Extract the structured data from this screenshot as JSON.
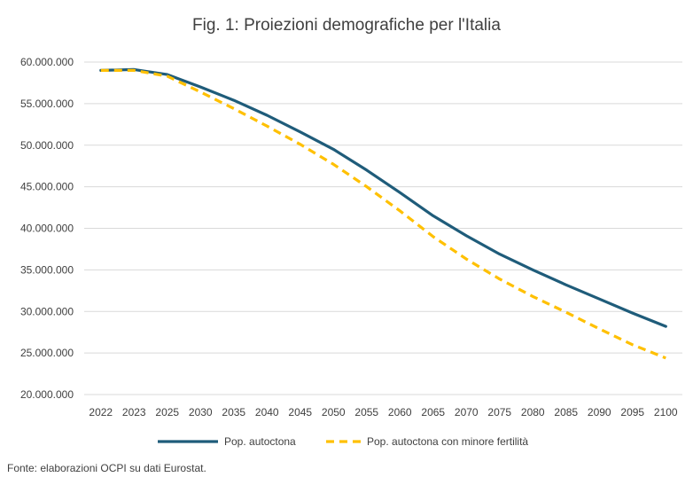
{
  "chart_data": {
    "type": "line",
    "title": "Fig. 1: Proiezioni demografiche per l'Italia",
    "xlabel": "",
    "ylabel": "",
    "ylim": [
      20000000,
      60000000
    ],
    "ytick_values": [
      20000000,
      25000000,
      30000000,
      35000000,
      40000000,
      45000000,
      50000000,
      55000000,
      60000000
    ],
    "ytick_labels": [
      "20.000.000",
      "25.000.000",
      "30.000.000",
      "35.000.000",
      "40.000.000",
      "45.000.000",
      "50.000.000",
      "55.000.000",
      "60.000.000"
    ],
    "categories": [
      "2022",
      "2023",
      "2025",
      "2030",
      "2035",
      "2040",
      "2045",
      "2050",
      "2055",
      "2060",
      "2065",
      "2070",
      "2075",
      "2080",
      "2085",
      "2090",
      "2095",
      "2100"
    ],
    "grid": true,
    "legend_position": "bottom",
    "series": [
      {
        "name": "Pop. autoctona",
        "color": "#1f5c7a",
        "dash": "solid",
        "values": [
          59000000,
          59100000,
          58500000,
          57000000,
          55400000,
          53600000,
          51600000,
          49500000,
          47000000,
          44300000,
          41500000,
          39100000,
          36900000,
          35000000,
          33200000,
          31500000,
          29800000,
          28200000
        ]
      },
      {
        "name": "Pop. autoctona con minore fertilità",
        "color": "#ffc000",
        "dash": "dashed",
        "values": [
          59000000,
          59000000,
          58300000,
          56400000,
          54400000,
          52300000,
          50100000,
          47700000,
          45000000,
          42100000,
          39000000,
          36300000,
          33900000,
          31800000,
          29900000,
          27900000,
          26000000,
          24400000
        ]
      }
    ]
  },
  "source_note": "Fonte: elaborazioni OCPI su dati Eurostat."
}
